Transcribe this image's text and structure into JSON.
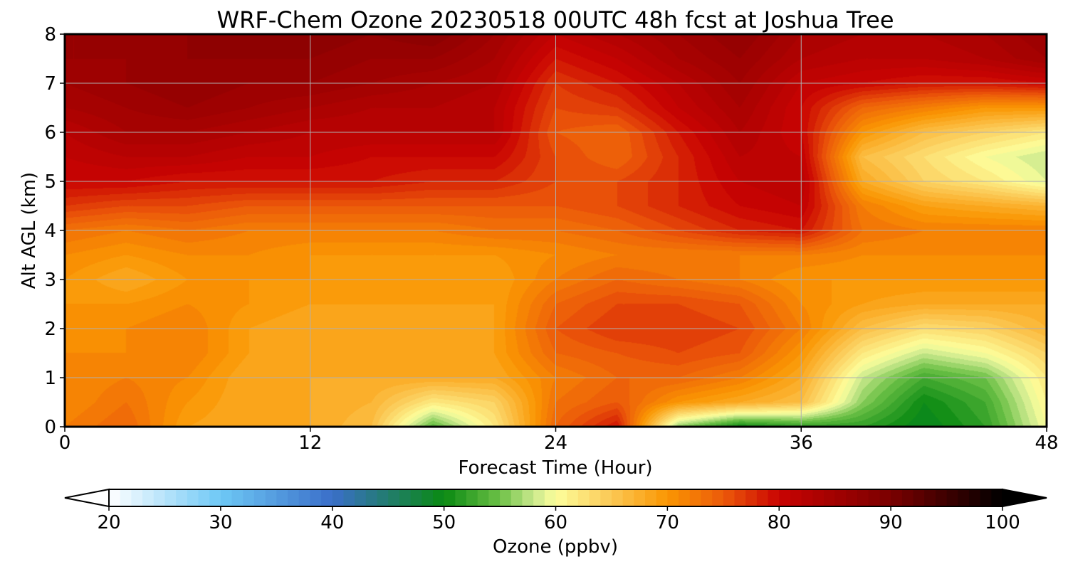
{
  "chart_data": {
    "type": "heatmap",
    "title": "WRF-Chem Ozone  20230518 00UTC 48h fcst at Joshua Tree",
    "xlabel": "Forecast Time (Hour)",
    "ylabel": "Alt AGL (km)",
    "xlim": [
      0,
      48
    ],
    "ylim": [
      0,
      8
    ],
    "xticks": [
      0,
      12,
      24,
      36,
      48
    ],
    "yticks": [
      0,
      1,
      2,
      3,
      4,
      5,
      6,
      7,
      8
    ],
    "grid": true,
    "x": [
      0,
      3,
      6,
      9,
      12,
      15,
      18,
      21,
      24,
      27,
      30,
      33,
      36,
      39,
      42,
      45,
      48
    ],
    "y": [
      0,
      0.5,
      1,
      1.5,
      2,
      2.5,
      3,
      3.5,
      4,
      4.5,
      5,
      5.5,
      6,
      6.5,
      7,
      7.5,
      8
    ],
    "z": [
      [
        72,
        74,
        69,
        68,
        68,
        66,
        54,
        62,
        74,
        79,
        56,
        50,
        52,
        52,
        49,
        52,
        60
      ],
      [
        71,
        73,
        70,
        68,
        68,
        67,
        62,
        64,
        73,
        75,
        70,
        68,
        66,
        56,
        50,
        53,
        61
      ],
      [
        71,
        72,
        71,
        68,
        68,
        68,
        68,
        68,
        72,
        74,
        74,
        72,
        68,
        58,
        53,
        55,
        62
      ],
      [
        71,
        71,
        72,
        69,
        68,
        68,
        68,
        69,
        74,
        75,
        76,
        75,
        70,
        62,
        58,
        60,
        64
      ],
      [
        70,
        71,
        72,
        69,
        68,
        68,
        68,
        69,
        75,
        77,
        77,
        76,
        72,
        66,
        63,
        64,
        67
      ],
      [
        70,
        70,
        71,
        70,
        69,
        69,
        69,
        69,
        74,
        76,
        76,
        75,
        71,
        69,
        68,
        68,
        68
      ],
      [
        70,
        68,
        70,
        70,
        70,
        69,
        69,
        69,
        72,
        74,
        73,
        72,
        70,
        70,
        70,
        70,
        70
      ],
      [
        71,
        70,
        71,
        71,
        70,
        70,
        70,
        70,
        71,
        72,
        72,
        72,
        72,
        71,
        71,
        71,
        71
      ],
      [
        73,
        72,
        73,
        72,
        72,
        72,
        72,
        73,
        73,
        74,
        76,
        78,
        79,
        73,
        72,
        72,
        72
      ],
      [
        77,
        76,
        76,
        75,
        75,
        75,
        75,
        75,
        75,
        76,
        78,
        80,
        81,
        72,
        69,
        68,
        67
      ],
      [
        80,
        80,
        79,
        79,
        79,
        79,
        78,
        78,
        76,
        76,
        78,
        81,
        82,
        68,
        64,
        62,
        59
      ],
      [
        81,
        82,
        82,
        81,
        81,
        80,
        80,
        80,
        76,
        74,
        78,
        82,
        81,
        66,
        63,
        60,
        58
      ],
      [
        82,
        84,
        84,
        83,
        82,
        82,
        82,
        82,
        75,
        74,
        79,
        83,
        80,
        70,
        66,
        64,
        62
      ],
      [
        84,
        85,
        86,
        85,
        84,
        83,
        83,
        82,
        76,
        77,
        81,
        84,
        80,
        74,
        72,
        70,
        70
      ],
      [
        85,
        86,
        87,
        86,
        86,
        85,
        84,
        83,
        77,
        79,
        82,
        85,
        81,
        80,
        79,
        79,
        80
      ],
      [
        86,
        86,
        87,
        87,
        87,
        86,
        86,
        84,
        79,
        81,
        84,
        86,
        83,
        82,
        82,
        83,
        85
      ],
      [
        86,
        86,
        87,
        87,
        88,
        87,
        88,
        85,
        81,
        83,
        85,
        87,
        84,
        83,
        83,
        84,
        86
      ]
    ],
    "colorbar": {
      "label": "Ozone  (ppbv)",
      "min": 20,
      "max": 100,
      "ticks": [
        20,
        30,
        40,
        50,
        60,
        70,
        80,
        90,
        100
      ],
      "extend": "both",
      "stops": [
        {
          "v": 20,
          "c": "#ffffff"
        },
        {
          "v": 30,
          "c": "#6ec8f5"
        },
        {
          "v": 40,
          "c": "#3a6fc9"
        },
        {
          "v": 50,
          "c": "#0a8a12"
        },
        {
          "v": 55,
          "c": "#6cc046"
        },
        {
          "v": 58,
          "c": "#c9e98d"
        },
        {
          "v": 60,
          "c": "#fdfe9c"
        },
        {
          "v": 65,
          "c": "#fbc854"
        },
        {
          "v": 70,
          "c": "#fa9602"
        },
        {
          "v": 75,
          "c": "#ec5a0a"
        },
        {
          "v": 80,
          "c": "#c90302"
        },
        {
          "v": 90,
          "c": "#7a0000"
        },
        {
          "v": 100,
          "c": "#000000"
        }
      ]
    }
  }
}
